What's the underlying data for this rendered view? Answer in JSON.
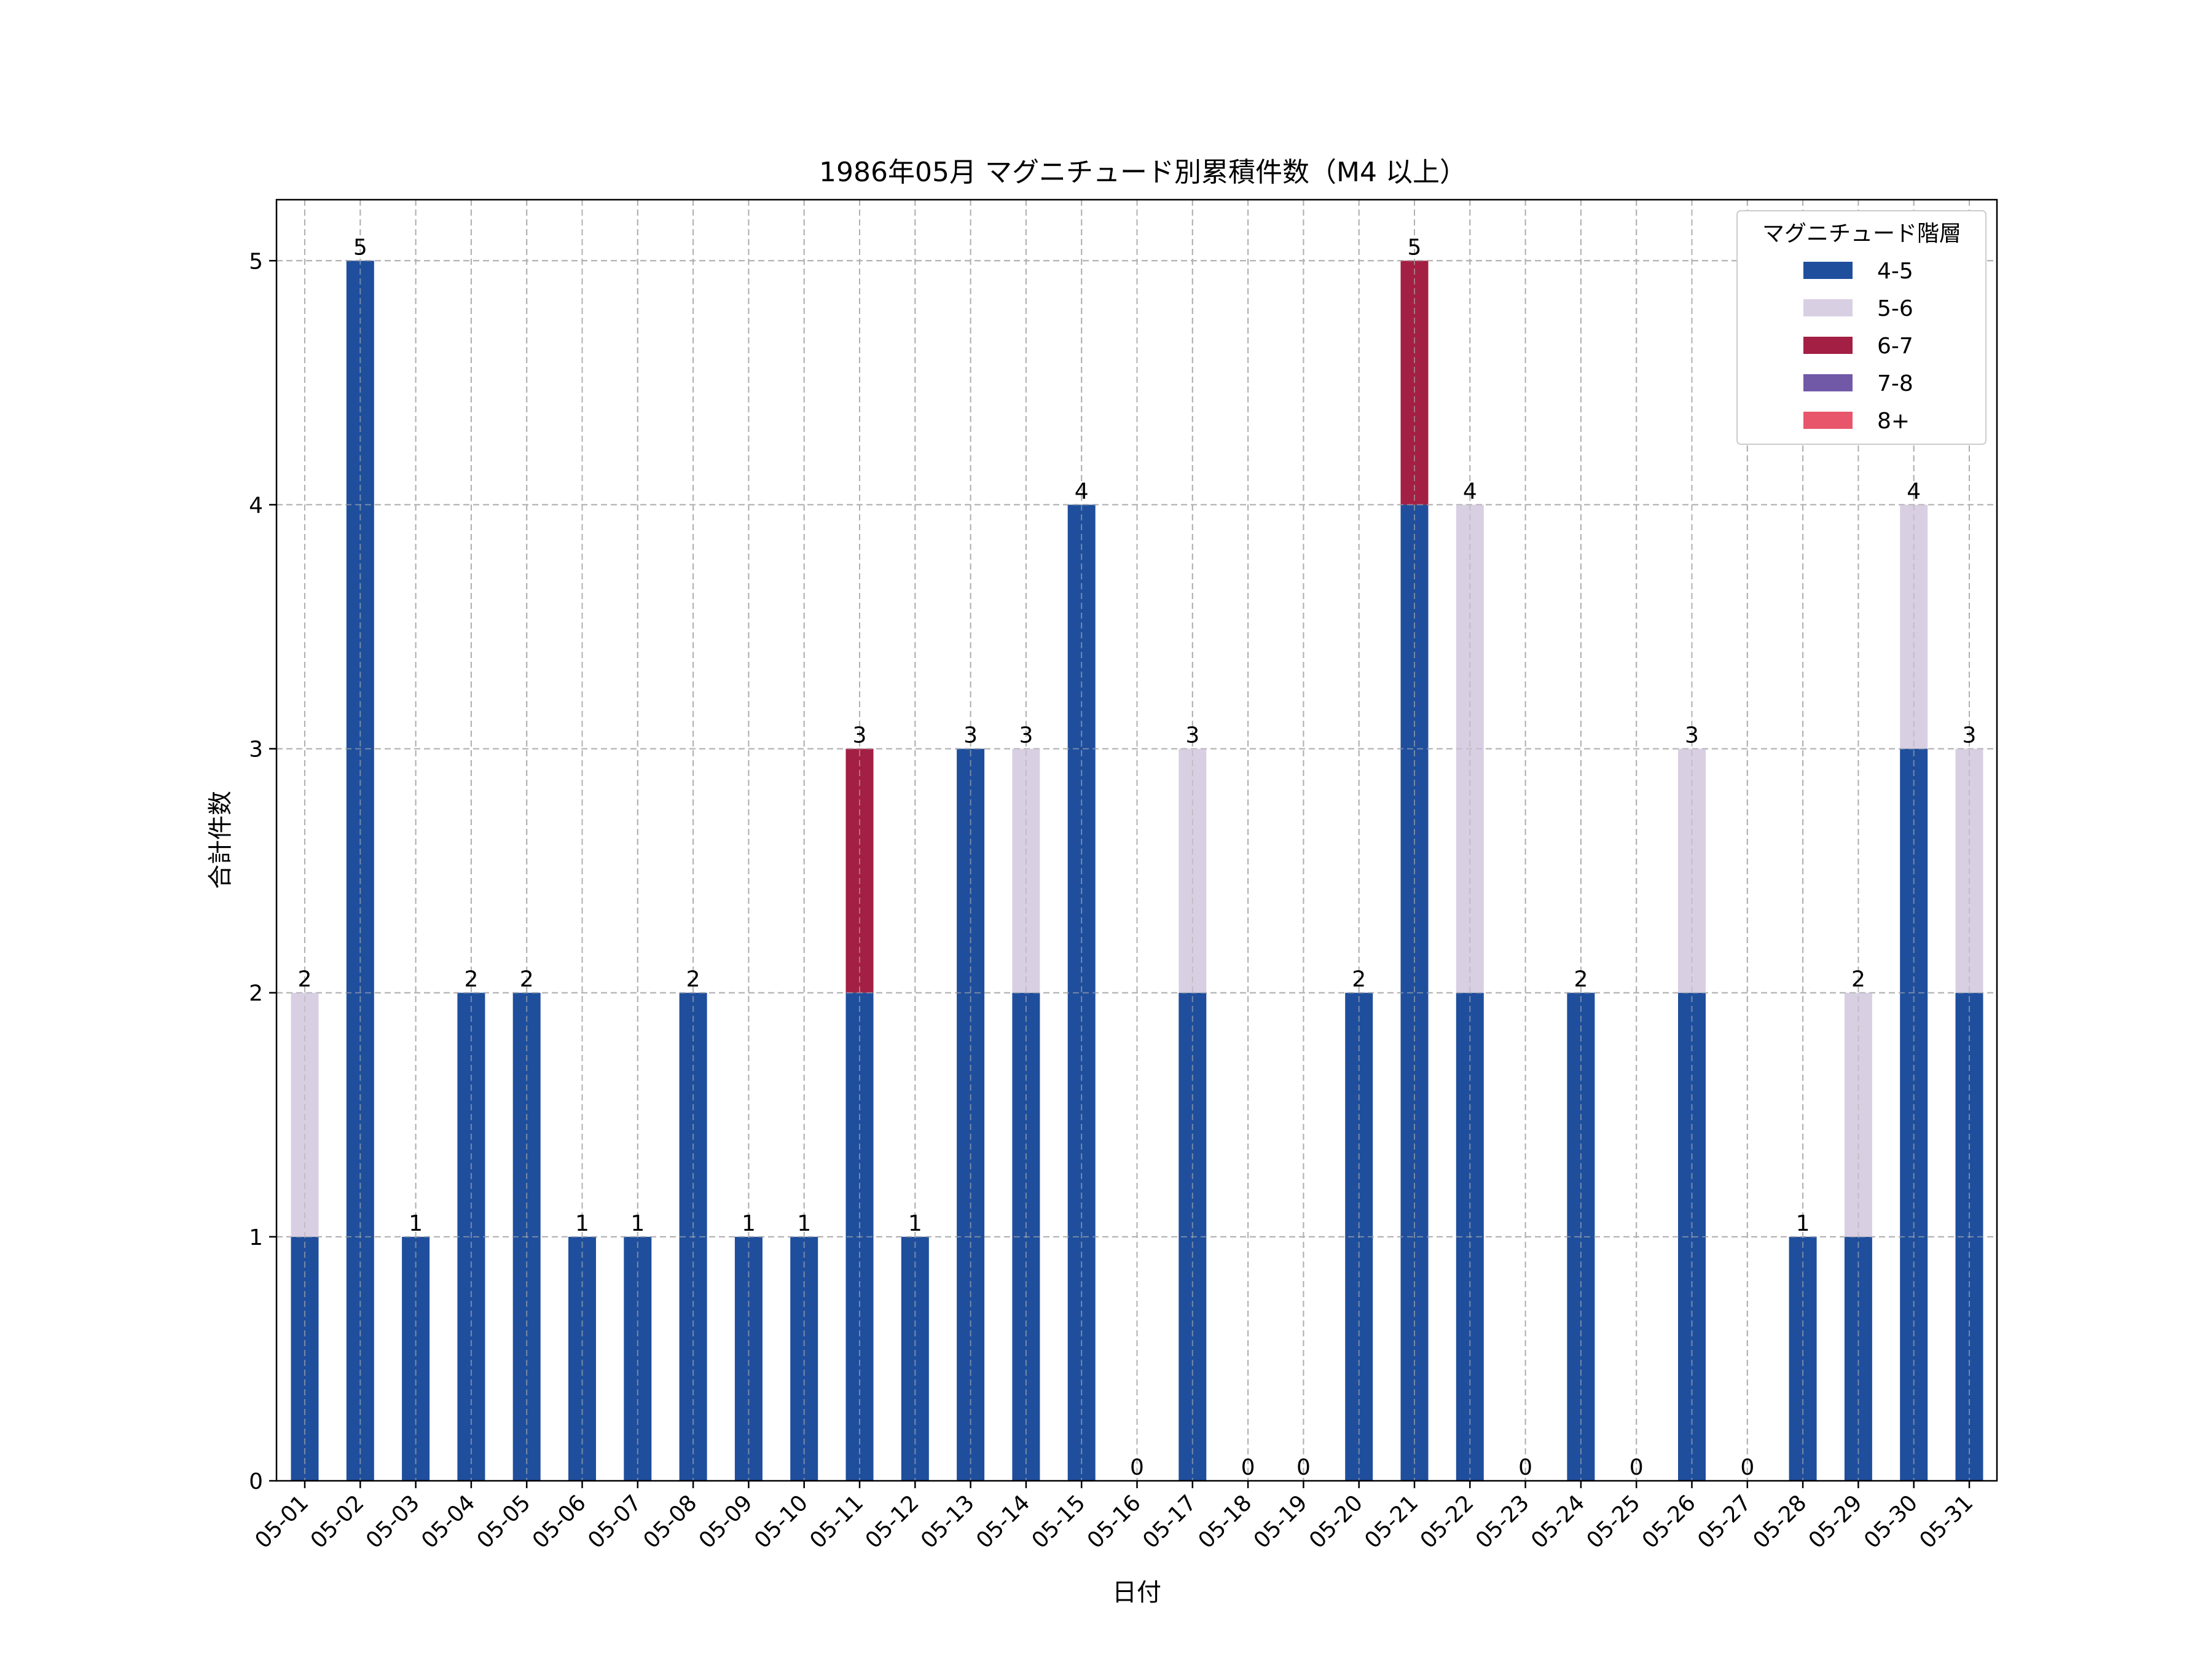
{
  "chart_data": {
    "type": "bar",
    "stacked": true,
    "title": "1986年05月 マグニチュード別累積件数（M4 以上）",
    "xlabel": "日付",
    "ylabel": "合計件数",
    "ylim": [
      0,
      5.25
    ],
    "yticks": [
      0,
      1,
      2,
      3,
      4,
      5
    ],
    "grid": true,
    "legend_position": "top-right",
    "legend_title": "マグニチュード階層",
    "categories": [
      "05-01",
      "05-02",
      "05-03",
      "05-04",
      "05-05",
      "05-06",
      "05-07",
      "05-08",
      "05-09",
      "05-10",
      "05-11",
      "05-12",
      "05-13",
      "05-14",
      "05-15",
      "05-16",
      "05-17",
      "05-18",
      "05-19",
      "05-20",
      "05-21",
      "05-22",
      "05-23",
      "05-24",
      "05-25",
      "05-26",
      "05-27",
      "05-28",
      "05-29",
      "05-30",
      "05-31"
    ],
    "series": [
      {
        "name": "4-5",
        "color": "#1f4e9c",
        "values": [
          1,
          5,
          1,
          2,
          2,
          1,
          1,
          2,
          1,
          1,
          2,
          1,
          3,
          2,
          4,
          0,
          2,
          0,
          0,
          2,
          4,
          2,
          0,
          2,
          0,
          2,
          0,
          1,
          1,
          3,
          2
        ]
      },
      {
        "name": "5-6",
        "color": "#d9cfe3",
        "values": [
          1,
          0,
          0,
          0,
          0,
          0,
          0,
          0,
          0,
          0,
          0,
          0,
          0,
          1,
          0,
          0,
          1,
          0,
          0,
          0,
          0,
          2,
          0,
          0,
          0,
          1,
          0,
          0,
          1,
          1,
          1
        ]
      },
      {
        "name": "6-7",
        "color": "#a31f43",
        "values": [
          0,
          0,
          0,
          0,
          0,
          0,
          0,
          0,
          0,
          0,
          1,
          0,
          0,
          0,
          0,
          0,
          0,
          0,
          0,
          0,
          1,
          0,
          0,
          0,
          0,
          0,
          0,
          0,
          0,
          0,
          0
        ]
      },
      {
        "name": "7-8",
        "color": "#7259a8",
        "values": [
          0,
          0,
          0,
          0,
          0,
          0,
          0,
          0,
          0,
          0,
          0,
          0,
          0,
          0,
          0,
          0,
          0,
          0,
          0,
          0,
          0,
          0,
          0,
          0,
          0,
          0,
          0,
          0,
          0,
          0,
          0
        ]
      },
      {
        "name": "8+",
        "color": "#e8566c",
        "values": [
          0,
          0,
          0,
          0,
          0,
          0,
          0,
          0,
          0,
          0,
          0,
          0,
          0,
          0,
          0,
          0,
          0,
          0,
          0,
          0,
          0,
          0,
          0,
          0,
          0,
          0,
          0,
          0,
          0,
          0,
          0
        ]
      }
    ],
    "totals": [
      2,
      5,
      1,
      2,
      2,
      1,
      1,
      2,
      1,
      1,
      3,
      1,
      3,
      3,
      4,
      0,
      3,
      0,
      0,
      2,
      5,
      4,
      0,
      2,
      0,
      3,
      0,
      1,
      2,
      4,
      3
    ]
  }
}
